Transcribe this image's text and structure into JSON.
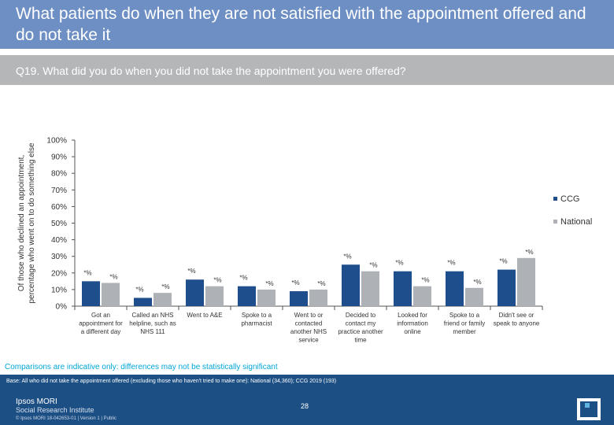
{
  "header": {
    "title": "What patients do when they are not satisfied with the appointment offered and do not take it",
    "question": "Q19. What did you do when you did not take the appointment you were offered?"
  },
  "notes": {
    "comparisons": "Comparisons are indicative only: differences may not be statistically significant",
    "base": "Base: All who did not take the appointment offered (excluding those who haven't tried to make one): National (34,360); CCG 2019 (193)"
  },
  "footer": {
    "brand_line1": "Ipsos MORI",
    "brand_line2": "Social Research Institute",
    "page_number": "28",
    "copyright": "© Ipsos MORI 18-042653-01 | Version 1 | Public"
  },
  "colors": {
    "ccg": "#1f4e8c",
    "national": "#aeb2b6"
  },
  "chart_data": {
    "type": "bar",
    "ylabel": "Of those who declined an appointment, percentage who went on to do something else",
    "ylim": [
      0,
      100
    ],
    "yticks": [
      "0%",
      "10%",
      "20%",
      "30%",
      "40%",
      "50%",
      "60%",
      "70%",
      "80%",
      "90%",
      "100%"
    ],
    "categories": [
      "Got an appointment for a different day",
      "Called an NHS helpline, such as NHS 111",
      "Went to A&E",
      "Spoke to a pharmacist",
      "Went to or contacted another NHS service",
      "Decided to contact my practice another time",
      "Looked for information online",
      "Spoke to a friend or family member",
      "Didn't see or speak to anyone"
    ],
    "category_lines": [
      [
        "Got an",
        "appointment for",
        "a different day"
      ],
      [
        "Called an NHS",
        "helpline, such as",
        "NHS 111"
      ],
      [
        "Went to A&E"
      ],
      [
        "Spoke to a",
        "pharmacist"
      ],
      [
        "Went to or",
        "contacted",
        "another NHS",
        "service"
      ],
      [
        "Decided to",
        "contact my",
        "practice another",
        "time"
      ],
      [
        "Looked for",
        "information",
        "online"
      ],
      [
        "Spoke to a",
        "friend or family",
        "member"
      ],
      [
        "Didn't see or",
        "speak to anyone"
      ]
    ],
    "series": [
      {
        "name": "CCG",
        "values": [
          15,
          5,
          16,
          12,
          9,
          25,
          21,
          21,
          22
        ],
        "labels": [
          "*%",
          "*%",
          "*%",
          "*%",
          "*%",
          "*%",
          "*%",
          "*%",
          "*%"
        ]
      },
      {
        "name": "National",
        "values": [
          14,
          8,
          12,
          10,
          10,
          21,
          12,
          11,
          29
        ],
        "labels": [
          "*%",
          "*%",
          "*%",
          "*%",
          "*%",
          "*%",
          "*%",
          "*%",
          "*%"
        ]
      }
    ],
    "legend_position": "right",
    "grid": false
  }
}
